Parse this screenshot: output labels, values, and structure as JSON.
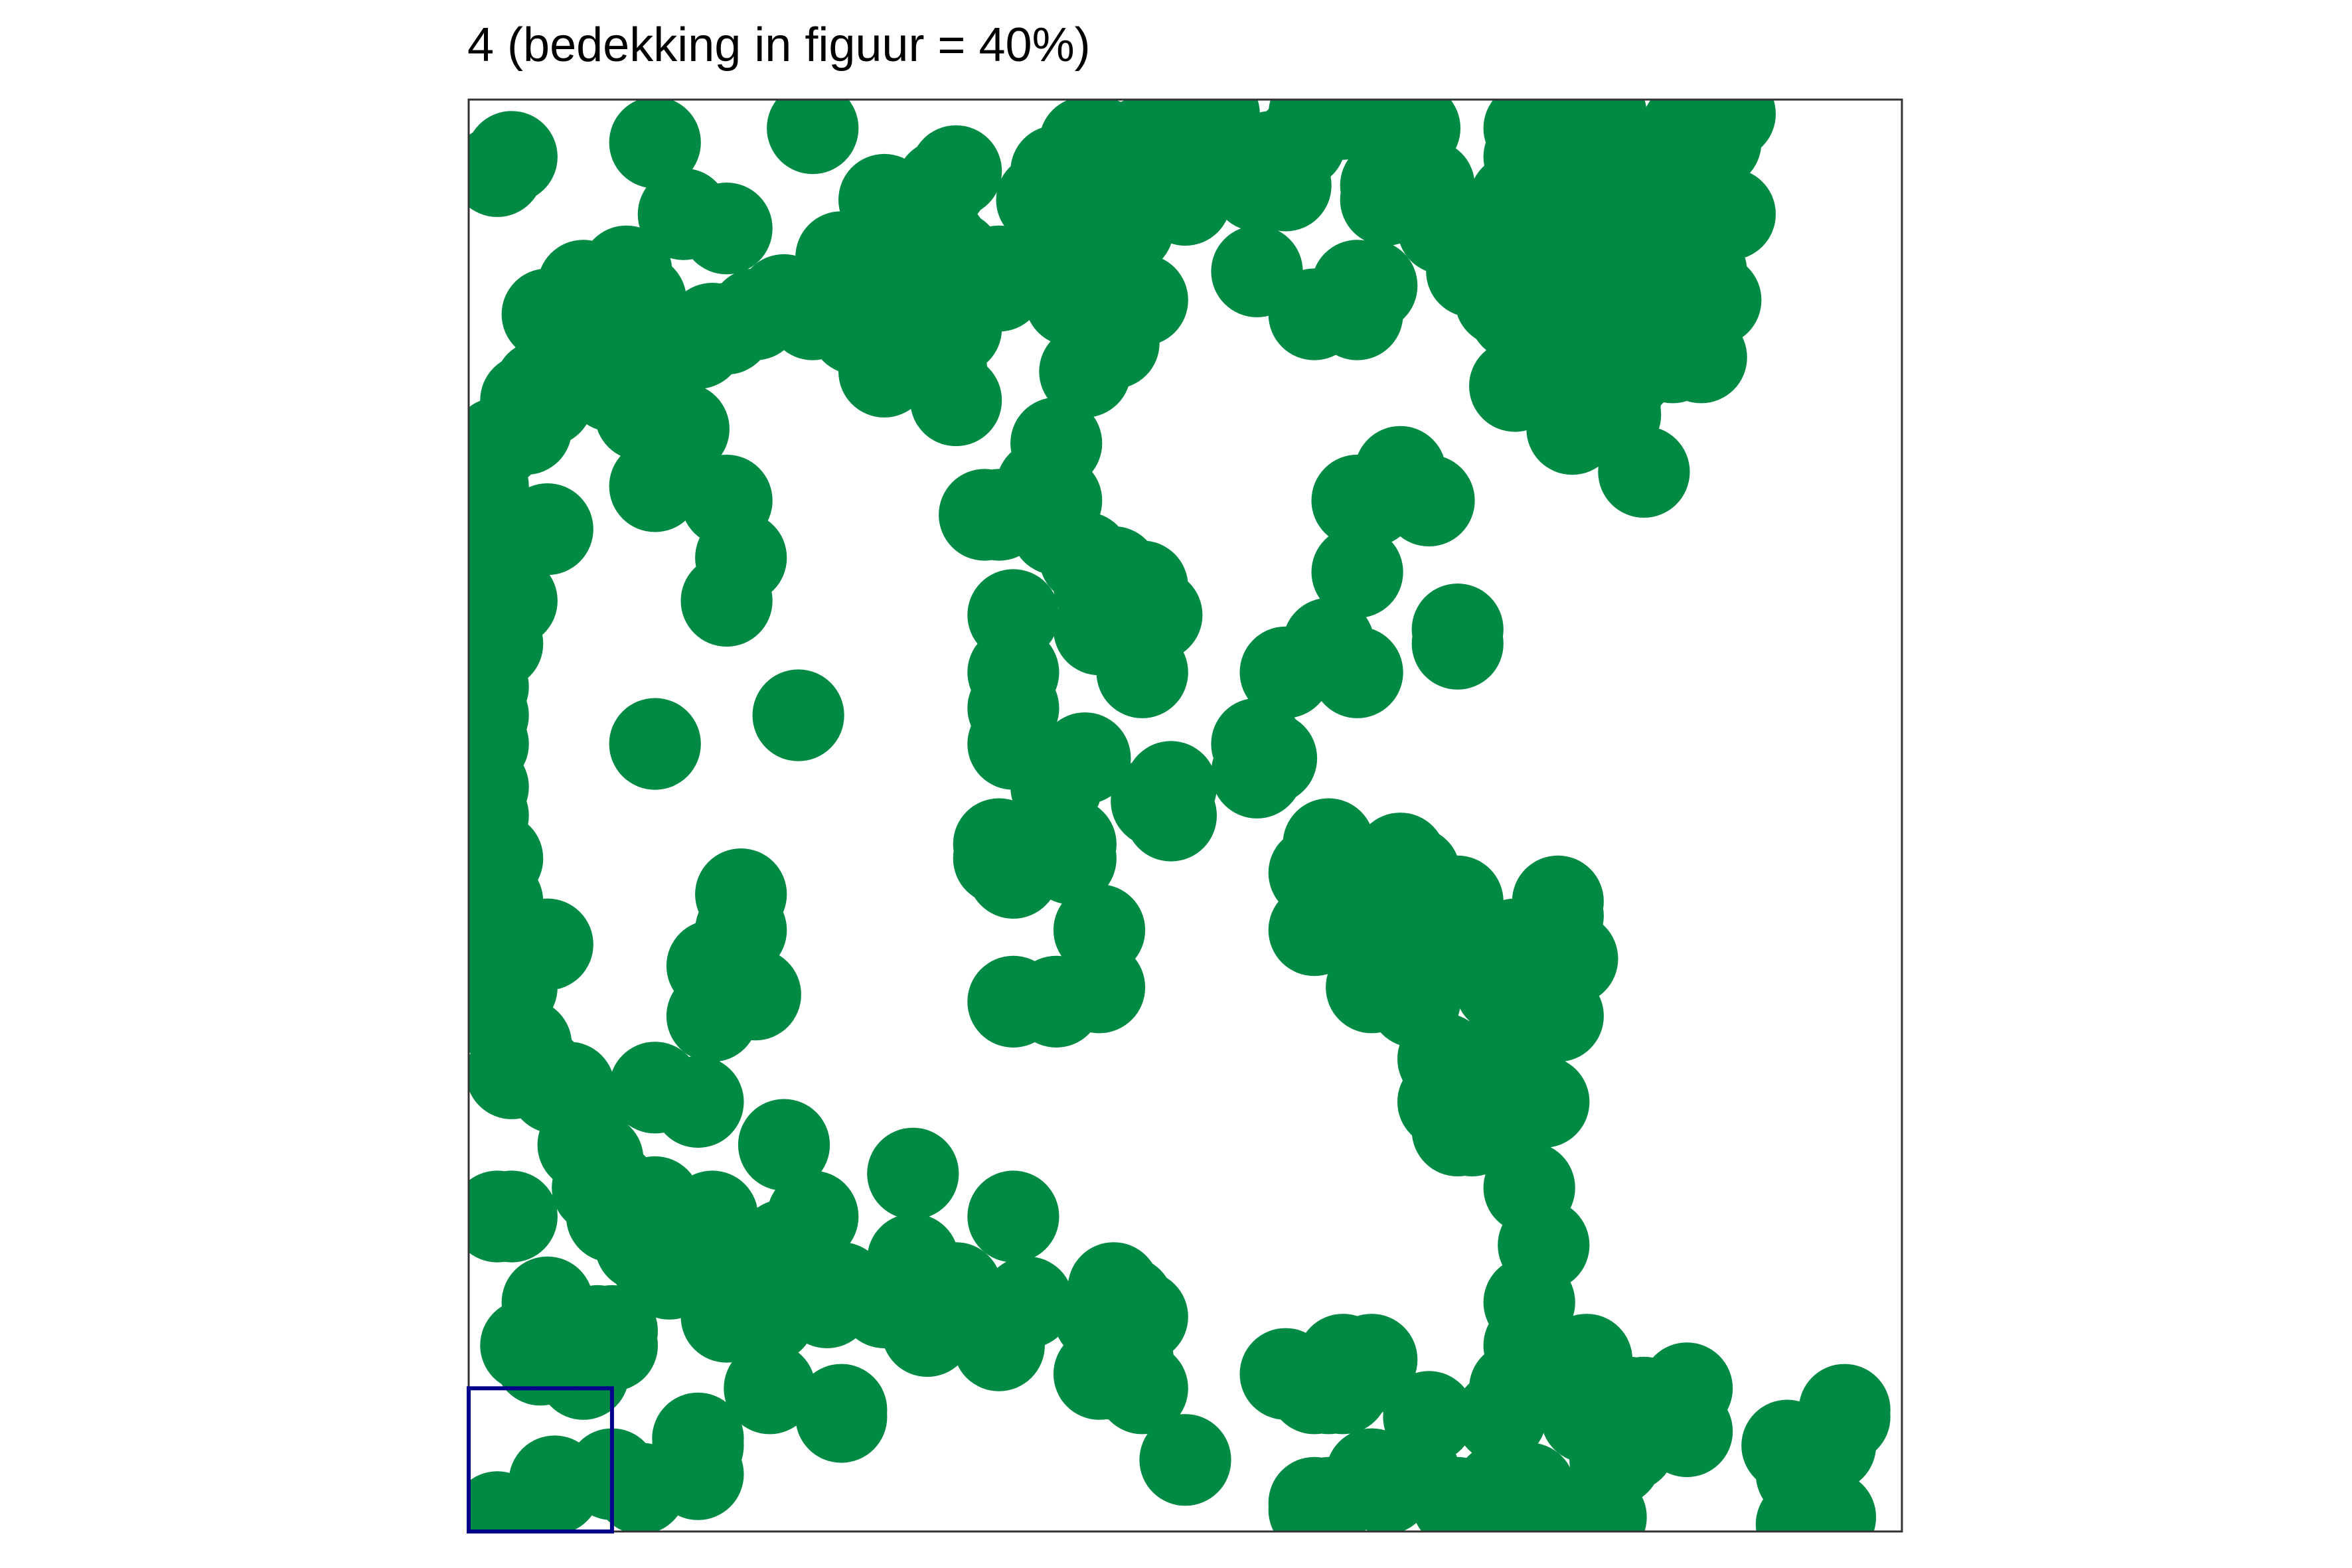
{
  "chart_data": {
    "type": "scatter",
    "title": "4 (bedekking in figuur = 40%)",
    "xlabel": "",
    "ylabel": "",
    "xlim": [
      0,
      100
    ],
    "ylim": [
      0,
      100
    ],
    "grid": false,
    "axes_visible": false,
    "marker": "filled circle",
    "marker_radius_units": 3.2,
    "colors": {
      "circle": "#008A44",
      "frame": "#333333",
      "sample_box": "#00008B"
    },
    "sample_quadrat": {
      "x": [
        0,
        10
      ],
      "y": [
        0,
        10
      ]
    },
    "circles": [
      [
        2,
        95
      ],
      [
        2,
        62
      ],
      [
        2,
        39
      ],
      [
        2,
        22
      ],
      [
        2,
        1
      ],
      [
        3,
        96
      ],
      [
        3,
        65
      ],
      [
        3,
        32
      ],
      [
        3,
        22
      ],
      [
        5.5,
        85
      ],
      [
        6,
        81
      ],
      [
        5.5,
        79
      ],
      [
        5.5,
        70
      ],
      [
        5.5,
        41
      ],
      [
        6,
        3.5
      ],
      [
        6,
        3
      ],
      [
        10,
        80
      ],
      [
        10,
        24
      ],
      [
        10,
        4
      ],
      [
        10,
        4
      ],
      [
        12,
        78
      ],
      [
        12,
        3
      ],
      [
        13,
        97
      ],
      [
        13,
        73
      ],
      [
        13,
        55
      ],
      [
        13,
        31
      ],
      [
        13,
        20
      ],
      [
        13,
        23
      ],
      [
        15,
        92
      ],
      [
        15,
        77
      ],
      [
        16,
        30
      ],
      [
        16,
        19
      ],
      [
        16,
        6
      ],
      [
        16,
        4
      ],
      [
        16,
        6.5
      ],
      [
        17,
        39.5
      ],
      [
        17,
        36
      ],
      [
        17,
        22
      ],
      [
        18,
        65
      ],
      [
        18,
        91
      ],
      [
        18,
        72
      ],
      [
        19,
        68
      ],
      [
        19,
        42
      ],
      [
        19,
        44.5
      ],
      [
        20,
        18.5
      ],
      [
        20,
        37.5
      ],
      [
        21,
        10
      ],
      [
        21,
        10
      ],
      [
        23,
        57
      ],
      [
        22,
        27
      ],
      [
        24,
        98
      ],
      [
        26,
        8
      ],
      [
        26,
        8.5
      ],
      [
        29,
        93
      ],
      [
        29,
        81
      ],
      [
        31,
        86
      ],
      [
        34,
        84
      ],
      [
        34,
        79
      ],
      [
        34,
        95
      ],
      [
        33,
        94
      ],
      [
        33,
        81
      ],
      [
        32,
        85
      ],
      [
        35,
        87
      ],
      [
        34,
        89
      ],
      [
        36,
        71
      ],
      [
        37,
        71
      ],
      [
        38,
        57.5
      ],
      [
        38,
        55
      ],
      [
        38,
        60
      ],
      [
        38,
        64
      ],
      [
        40,
        73
      ],
      [
        41,
        70
      ],
      [
        43,
        68
      ],
      [
        45,
        67
      ],
      [
        48,
        64
      ],
      [
        47,
        60
      ],
      [
        48,
        51
      ],
      [
        49,
        50
      ],
      [
        49,
        52
      ],
      [
        55,
        55
      ],
      [
        56,
        54
      ],
      [
        55,
        53
      ],
      [
        57,
        60
      ],
      [
        60,
        62
      ],
      [
        62,
        85
      ],
      [
        63,
        87
      ],
      [
        62,
        72
      ],
      [
        63,
        72
      ],
      [
        62,
        67
      ],
      [
        62,
        60
      ],
      [
        64,
        93
      ],
      [
        62,
        87
      ],
      [
        67,
        72
      ],
      [
        65,
        74
      ],
      [
        69,
        44
      ],
      [
        69,
        62
      ],
      [
        69,
        63
      ],
      [
        59,
        85
      ],
      [
        56,
        96
      ],
      [
        57,
        94
      ],
      [
        55,
        88
      ],
      [
        50,
        93
      ],
      [
        47,
        86
      ],
      [
        46,
        86
      ],
      [
        46,
        91
      ],
      [
        43,
        90
      ],
      [
        41,
        72
      ],
      [
        41,
        76
      ],
      [
        43,
        81
      ],
      [
        42,
        86
      ],
      [
        45,
        83
      ],
      [
        44,
        87
      ],
      [
        44,
        63
      ],
      [
        45,
        66
      ],
      [
        43,
        54
      ],
      [
        44,
        66
      ],
      [
        47,
        66
      ],
      [
        48,
        64
      ],
      [
        42,
        48
      ],
      [
        42,
        47
      ],
      [
        41,
        52
      ],
      [
        37,
        48
      ],
      [
        37,
        47
      ],
      [
        31,
        25
      ],
      [
        31,
        19
      ],
      [
        38,
        22
      ],
      [
        38,
        37
      ],
      [
        38,
        46
      ],
      [
        41,
        37
      ],
      [
        44,
        42
      ],
      [
        44,
        42
      ],
      [
        44,
        38
      ],
      [
        44,
        15
      ],
      [
        44,
        11
      ],
      [
        45,
        17
      ],
      [
        45,
        11
      ],
      [
        39,
        16
      ],
      [
        37,
        13
      ],
      [
        34,
        17
      ],
      [
        32,
        14
      ],
      [
        31,
        17
      ],
      [
        29,
        16
      ],
      [
        26,
        17
      ],
      [
        25,
        16
      ],
      [
        24,
        18
      ],
      [
        24,
        22
      ],
      [
        22,
        20
      ],
      [
        18,
        20
      ],
      [
        18,
        15
      ],
      [
        21,
        15
      ],
      [
        21,
        18
      ],
      [
        10,
        14
      ],
      [
        10,
        13
      ],
      [
        9,
        14
      ],
      [
        8,
        11
      ],
      [
        8,
        12
      ],
      [
        7,
        12
      ],
      [
        5.5,
        16
      ],
      [
        6,
        14
      ],
      [
        5,
        12
      ],
      [
        4,
        13
      ],
      [
        50,
        5
      ],
      [
        47,
        15
      ],
      [
        46,
        16
      ],
      [
        45,
        16
      ],
      [
        46,
        12
      ],
      [
        46,
        11
      ],
      [
        47,
        10
      ],
      [
        57,
        11
      ],
      [
        59,
        10
      ],
      [
        60,
        10
      ],
      [
        61,
        12
      ],
      [
        61,
        10
      ],
      [
        62,
        11
      ],
      [
        63,
        12
      ],
      [
        67,
        8
      ],
      [
        72,
        8
      ],
      [
        73,
        10
      ],
      [
        74,
        10
      ],
      [
        75,
        12
      ],
      [
        74,
        13
      ],
      [
        74,
        16
      ],
      [
        82,
        7.5
      ],
      [
        79,
        7.5
      ],
      [
        78,
        8
      ],
      [
        81,
        9
      ],
      [
        78,
        12
      ],
      [
        78,
        12
      ],
      [
        85,
        7
      ],
      [
        82,
        9
      ],
      [
        85,
        10
      ],
      [
        92,
        6
      ],
      [
        92,
        6
      ],
      [
        95,
        6
      ],
      [
        95,
        6.5
      ],
      [
        96,
        8.5
      ],
      [
        96,
        8
      ],
      [
        93,
        4
      ],
      [
        93,
        0.5
      ],
      [
        95,
        1
      ],
      [
        94,
        1
      ],
      [
        94,
        1
      ],
      [
        79,
        1
      ],
      [
        79,
        1
      ],
      [
        80,
        5
      ],
      [
        80,
        7
      ],
      [
        81,
        6
      ],
      [
        81,
        8
      ],
      [
        81,
        9
      ],
      [
        59,
        1.5
      ],
      [
        59,
        2
      ],
      [
        60,
        2
      ],
      [
        63,
        4
      ],
      [
        64,
        3
      ],
      [
        66,
        4
      ],
      [
        65,
        4
      ],
      [
        69,
        2
      ],
      [
        71,
        1
      ],
      [
        71,
        1
      ],
      [
        72,
        3
      ],
      [
        74,
        2
      ],
      [
        74,
        3
      ],
      [
        73,
        3
      ],
      [
        75,
        20
      ],
      [
        74,
        24
      ],
      [
        74,
        30
      ],
      [
        75,
        30
      ],
      [
        74,
        37
      ],
      [
        73,
        32
      ],
      [
        71,
        29
      ],
      [
        70,
        31
      ],
      [
        70,
        28
      ],
      [
        69,
        28
      ],
      [
        68,
        30
      ],
      [
        68,
        33
      ],
      [
        71,
        32
      ],
      [
        73,
        36
      ],
      [
        76,
        36
      ],
      [
        77,
        40
      ],
      [
        76,
        40
      ],
      [
        76,
        43
      ],
      [
        76,
        44
      ],
      [
        73,
        41
      ],
      [
        72,
        39
      ],
      [
        72,
        38
      ],
      [
        71,
        41
      ],
      [
        71,
        41
      ],
      [
        68,
        41
      ],
      [
        67,
        41
      ],
      [
        66,
        37
      ],
      [
        63,
        38
      ],
      [
        63,
        43
      ],
      [
        64,
        44
      ],
      [
        64,
        46
      ],
      [
        65,
        47
      ],
      [
        66,
        46
      ],
      [
        66,
        42
      ],
      [
        61,
        42
      ],
      [
        59,
        42
      ],
      [
        59,
        46
      ],
      [
        60,
        48
      ],
      [
        73,
        80
      ],
      [
        77,
        77
      ],
      [
        78,
        80
      ],
      [
        79,
        85
      ],
      [
        80,
        79
      ],
      [
        82,
        74
      ],
      [
        81,
        81
      ],
      [
        76,
        82
      ],
      [
        73,
        86
      ],
      [
        74,
        90
      ],
      [
        73,
        93
      ],
      [
        75,
        93
      ],
      [
        74,
        96
      ],
      [
        74,
        98
      ],
      [
        77,
        96
      ],
      [
        77,
        96
      ],
      [
        77,
        99
      ],
      [
        78,
        99
      ],
      [
        79,
        99
      ],
      [
        79,
        96
      ],
      [
        80,
        96
      ],
      [
        83,
        96
      ],
      [
        85,
        97
      ],
      [
        85,
        98
      ],
      [
        87,
        97
      ],
      [
        87,
        99
      ],
      [
        88,
        99
      ],
      [
        88,
        92
      ],
      [
        86,
        95
      ],
      [
        86,
        94
      ],
      [
        85,
        91
      ],
      [
        84,
        91
      ],
      [
        86,
        82
      ],
      [
        86,
        85
      ],
      [
        87,
        86
      ],
      [
        86,
        88
      ],
      [
        86,
        90
      ],
      [
        83,
        85
      ],
      [
        84,
        84
      ],
      [
        84,
        82
      ],
      [
        80,
        78
      ],
      [
        79,
        80
      ],
      [
        81,
        82
      ],
      [
        78,
        91
      ],
      [
        78,
        92
      ],
      [
        79,
        89
      ],
      [
        80,
        89
      ],
      [
        81,
        88
      ],
      [
        82,
        92
      ],
      [
        79,
        93
      ],
      [
        77,
        91
      ],
      [
        77,
        91
      ],
      [
        75,
        89
      ],
      [
        74,
        87
      ],
      [
        73,
        85
      ],
      [
        72,
        86
      ],
      [
        72,
        88
      ],
      [
        70,
        89
      ],
      [
        70,
        88
      ],
      [
        69,
        91
      ],
      [
        68,
        91
      ],
      [
        67,
        94
      ],
      [
        66,
        95
      ],
      [
        66,
        98
      ],
      [
        64,
        98
      ],
      [
        64,
        94
      ],
      [
        64,
        98
      ],
      [
        61,
        99
      ],
      [
        59,
        99
      ],
      [
        58,
        97
      ],
      [
        55,
        94
      ],
      [
        52,
        97
      ],
      [
        51,
        97
      ],
      [
        51,
        95
      ],
      [
        52,
        99
      ],
      [
        50,
        99
      ],
      [
        48,
        97
      ],
      [
        47,
        97
      ],
      [
        46,
        95
      ],
      [
        45,
        95
      ],
      [
        44,
        95
      ],
      [
        44,
        97
      ],
      [
        43,
        97
      ],
      [
        43,
        96
      ],
      [
        41,
        95
      ],
      [
        41,
        91
      ],
      [
        40,
        93
      ],
      [
        41,
        93
      ],
      [
        40,
        89
      ],
      [
        37,
        88
      ],
      [
        37,
        87
      ],
      [
        33,
        90
      ],
      [
        32,
        93
      ],
      [
        30,
        91
      ],
      [
        29,
        91
      ],
      [
        26,
        89
      ],
      [
        26,
        86
      ],
      [
        27,
        84
      ],
      [
        24,
        86
      ],
      [
        24,
        85
      ],
      [
        22,
        86
      ],
      [
        20,
        85
      ],
      [
        18,
        84
      ],
      [
        17,
        84
      ],
      [
        16,
        83
      ],
      [
        14,
        82
      ],
      [
        13,
        83
      ],
      [
        13,
        84
      ],
      [
        12,
        86
      ],
      [
        11,
        88
      ],
      [
        10,
        86
      ],
      [
        9,
        86
      ],
      [
        8,
        85
      ],
      [
        8,
        87
      ],
      [
        7,
        85
      ],
      [
        7,
        83
      ],
      [
        6,
        81
      ],
      [
        5,
        80
      ],
      [
        5,
        79
      ],
      [
        4,
        79
      ],
      [
        4,
        77
      ],
      [
        2,
        76
      ],
      [
        1,
        75
      ],
      [
        1,
        73
      ],
      [
        1,
        69
      ],
      [
        1,
        68
      ],
      [
        1,
        66
      ],
      [
        1,
        63
      ],
      [
        1,
        59
      ],
      [
        1,
        57
      ],
      [
        1,
        55
      ],
      [
        1,
        52
      ],
      [
        1,
        50
      ],
      [
        2,
        47
      ],
      [
        2,
        44
      ],
      [
        2,
        43
      ],
      [
        2,
        42
      ],
      [
        3,
        40
      ],
      [
        3,
        38
      ],
      [
        2,
        36
      ],
      [
        4,
        34
      ],
      [
        4,
        33
      ],
      [
        5,
        32
      ],
      [
        6,
        31
      ],
      [
        7,
        31
      ],
      [
        8,
        29
      ],
      [
        8,
        27
      ],
      [
        9,
        26
      ],
      [
        9,
        24
      ],
      [
        10,
        22
      ],
      [
        12,
        22
      ],
      [
        12,
        20
      ],
      [
        13,
        19
      ],
      [
        14,
        18
      ]
    ]
  }
}
